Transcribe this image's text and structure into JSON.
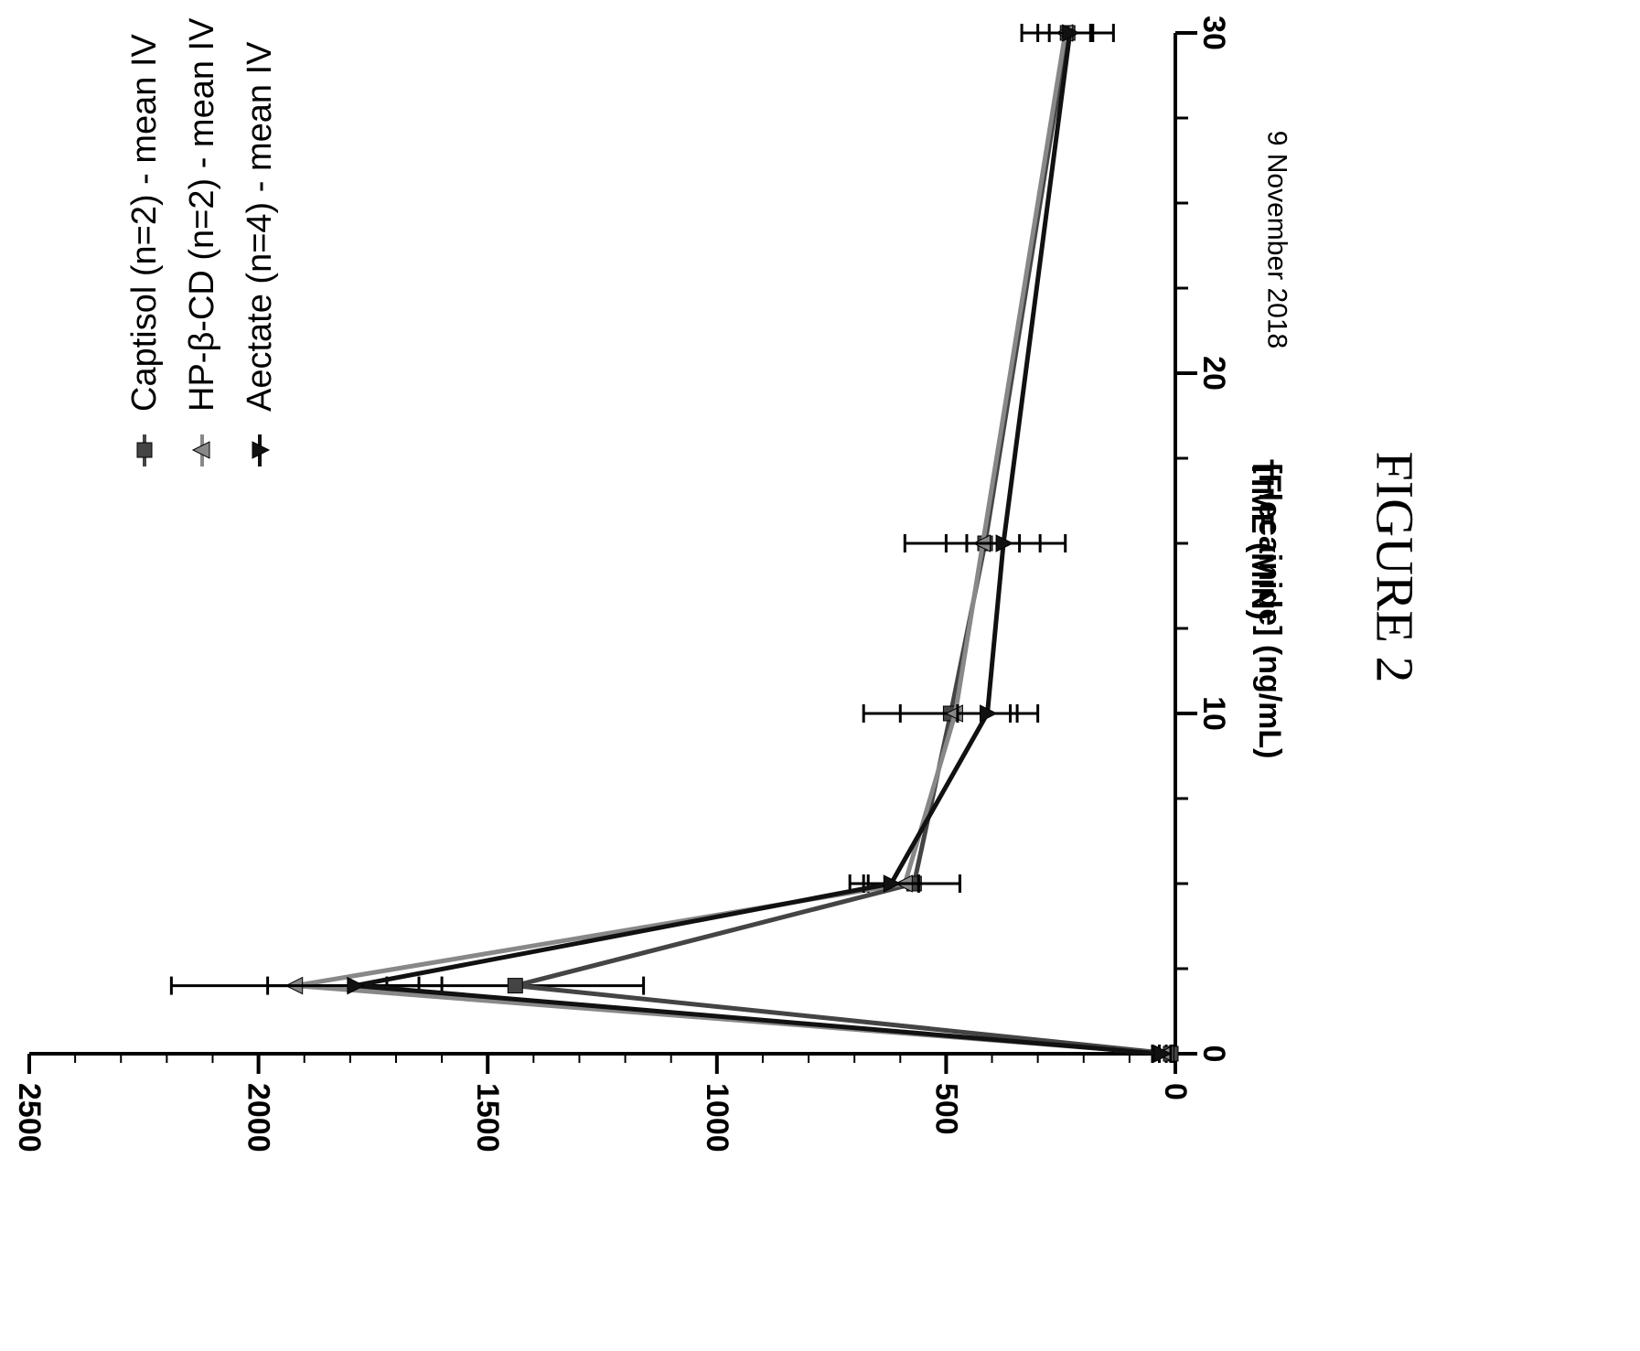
{
  "figure_label": "FIGURE 2",
  "date_note": "9 November 2018",
  "chart_data": {
    "type": "line",
    "orientation": "rotated-90-clockwise",
    "xlabel": "TIME (MIN)",
    "ylabel": "[Flecainide] (ng/mL)",
    "xlim": [
      0,
      30
    ],
    "ylim": [
      0,
      2500
    ],
    "x_ticks": [
      0,
      10,
      20,
      30
    ],
    "x_ticks_labeled": [
      "0",
      "10",
      "20",
      "30"
    ],
    "x_minor_step": 2.5,
    "y_ticks": [
      0,
      500,
      1000,
      1500,
      2000,
      2500
    ],
    "y_ticks_labeled": [
      "0",
      "500",
      "1000",
      "1500",
      "2000",
      "2500"
    ],
    "y_minor_step": 100,
    "grid": false,
    "legend_position": "top-left",
    "series": [
      {
        "name": "Captisol (n=2) - mean IV",
        "marker": "square",
        "color": "#444444",
        "x": [
          0,
          2,
          5,
          10,
          15,
          30
        ],
        "y": [
          10,
          1440,
          570,
          490,
          415,
          235
        ],
        "err": [
          10,
          280,
          100,
          190,
          175,
          100
        ]
      },
      {
        "name": "HP-β-CD (n=2) - mean IV",
        "marker": "triangle",
        "color": "#888888",
        "x": [
          0,
          2,
          5,
          10,
          15,
          30
        ],
        "y": [
          20,
          1920,
          590,
          480,
          420,
          240
        ],
        "err": [
          15,
          270,
          120,
          120,
          80,
          60
        ]
      },
      {
        "name": "Aectate (n=4) - mean IV",
        "marker": "triangle-down",
        "color": "#111111",
        "x": [
          0,
          2,
          5,
          10,
          15,
          30
        ],
        "y": [
          30,
          1790,
          620,
          410,
          375,
          230
        ],
        "err": [
          20,
          190,
          60,
          65,
          80,
          45
        ]
      }
    ]
  }
}
